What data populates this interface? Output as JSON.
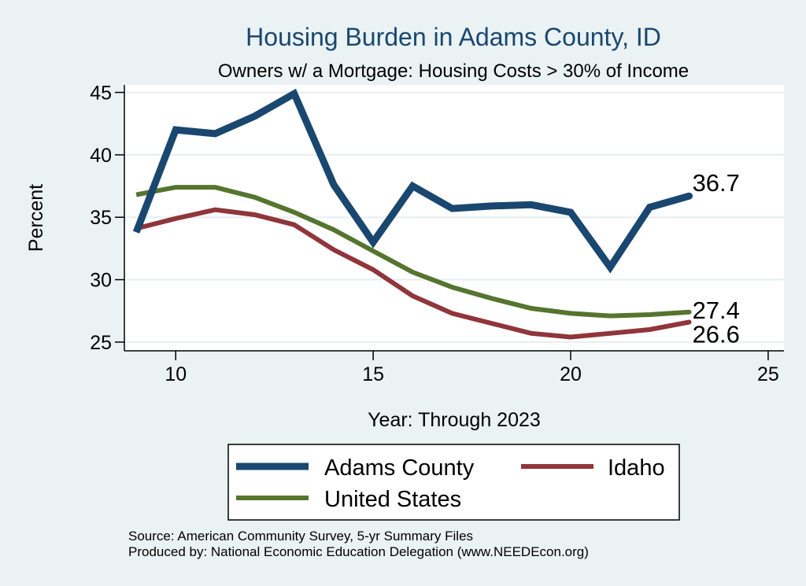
{
  "chart_data": {
    "type": "line",
    "title": "Housing Burden in Adams County, ID",
    "subtitle": "Owners w/ a Mortgage: Housing Costs > 30% of Income",
    "xlabel": "Year: Through 2023",
    "ylabel": "Percent",
    "xlim": [
      8.7,
      25.4
    ],
    "ylim": [
      24.3,
      45.6
    ],
    "xticks": [
      10,
      15,
      20,
      25
    ],
    "yticks": [
      25,
      30,
      35,
      40,
      45
    ],
    "x": [
      9,
      10,
      11,
      12,
      13,
      14,
      15,
      16,
      17,
      18,
      19,
      20,
      21,
      22,
      23
    ],
    "series": [
      {
        "name": "Adams County",
        "color": "#1a476f",
        "values": [
          33.8,
          42.0,
          41.7,
          43.1,
          44.9,
          37.6,
          33.0,
          37.5,
          35.7,
          35.9,
          36.0,
          35.4,
          31.0,
          35.8,
          36.7
        ],
        "end_label": "36.7"
      },
      {
        "name": "Idaho",
        "color": "#90353b",
        "values": [
          34.1,
          34.9,
          35.6,
          35.2,
          34.4,
          32.4,
          30.8,
          28.7,
          27.3,
          26.5,
          25.7,
          25.4,
          25.7,
          26.0,
          26.6
        ],
        "end_label": "26.6"
      },
      {
        "name": "United States",
        "color": "#55752f",
        "values": [
          36.8,
          37.4,
          37.4,
          36.6,
          35.4,
          34.0,
          32.3,
          30.6,
          29.4,
          28.5,
          27.7,
          27.3,
          27.1,
          27.2,
          27.4
        ],
        "end_label": "27.4"
      }
    ],
    "legend": {
      "position": "bottom",
      "entries": [
        "Adams County",
        "Idaho",
        "United States"
      ]
    },
    "notes": [
      "Source: American Community Survey, 5-yr Summary Files",
      "Produced by: National Economic Education Delegation (www.NEEDEcon.org)"
    ]
  }
}
